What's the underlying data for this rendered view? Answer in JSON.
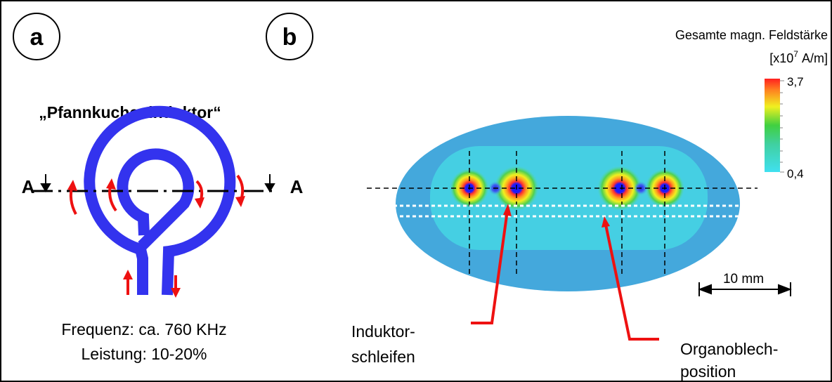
{
  "panel_a": {
    "label": "a",
    "title": "„Pfannkucheninduktor“",
    "section_marks": [
      "A",
      "A"
    ],
    "info": [
      "Frequenz: ca. 760 KHz",
      "Leistung: 10-20%"
    ]
  },
  "panel_b": {
    "label": "b",
    "legend": {
      "title": "Gesamte magn. Feldstärke",
      "unit_prefix": "[x10",
      "unit_exponent": "7",
      "unit_suffix": "A/m]",
      "max": "3,7",
      "min": "0,4"
    },
    "scale_bar": "10 mm",
    "annotations": [
      {
        "lines": [
          "Induktor-",
          "schleifen"
        ]
      },
      {
        "lines": [
          "Organoblech-",
          "position"
        ]
      }
    ]
  }
}
